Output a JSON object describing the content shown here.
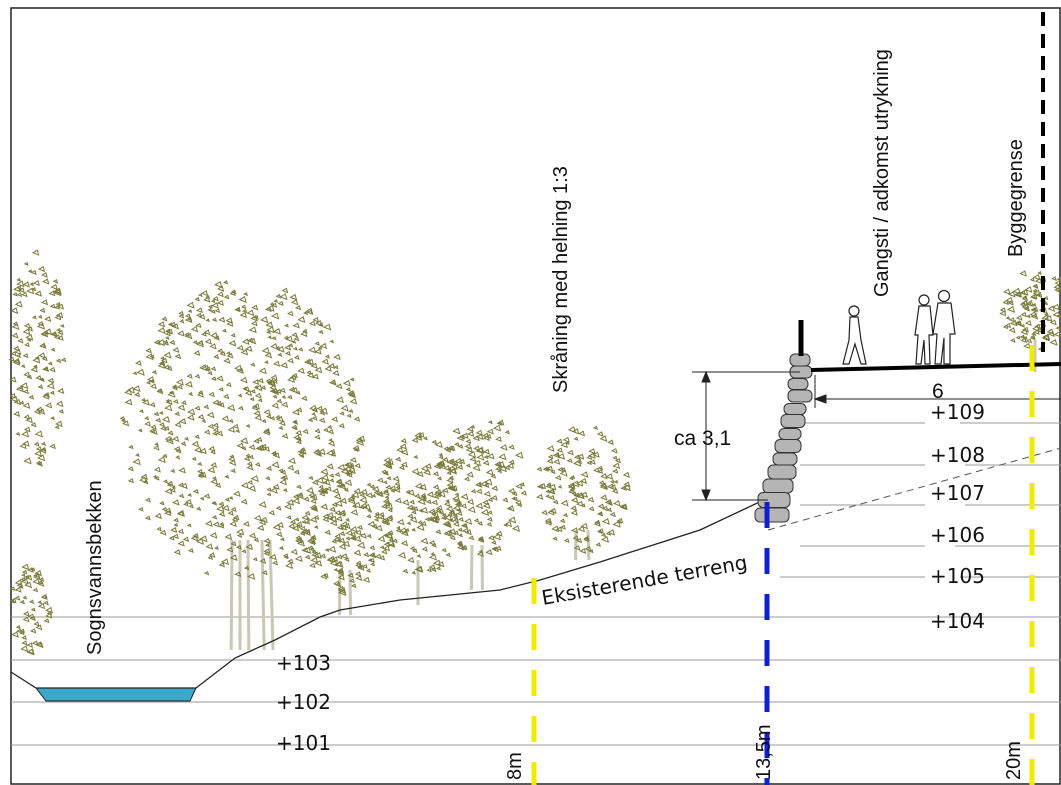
{
  "labels": {
    "stream": "Sognsvannsbekken",
    "slope": "Skråning med helning 1:3",
    "path": "Gangsti / adkomst utrykning",
    "building_line": "Byggegrense",
    "existing_terrain": "Eksisterende terreng",
    "wall_height": "ca 3,1",
    "path_width": "6"
  },
  "levels": [
    "+109",
    "+108",
    "+107",
    "+106",
    "+105",
    "+104",
    "+103",
    "+102",
    "+101"
  ],
  "distance_markers": [
    {
      "label": "8m",
      "color": "#f2ea00"
    },
    {
      "label": "13,5m",
      "color": "#1020d0"
    },
    {
      "label": "20m",
      "color": "#f2ea00"
    }
  ],
  "colors": {
    "foliage": "#7a7a3a",
    "trunk": "#c8c8b4",
    "water": "#3aa8c8",
    "stone": "#a9a9a9",
    "grid": "#9a9a9a",
    "ink": "#111111"
  },
  "icons": [
    "person-walking-icon",
    "couple-walking-icon",
    "tree-icon"
  ]
}
